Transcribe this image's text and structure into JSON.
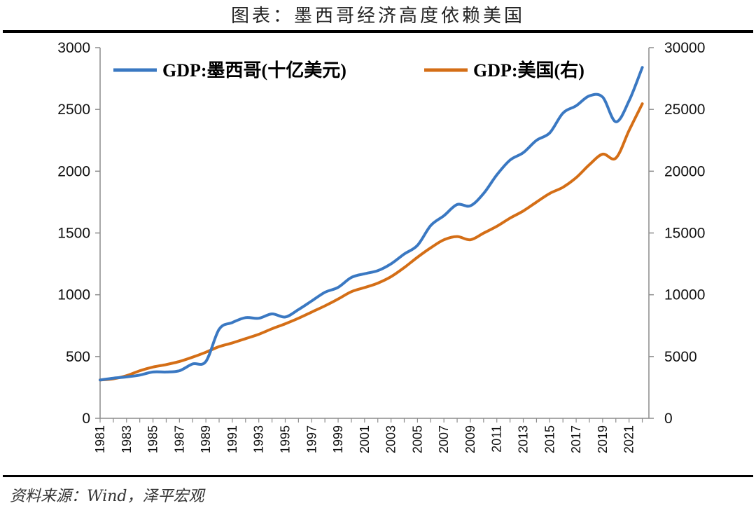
{
  "header": {
    "title": "图表：墨西哥经济高度依赖美国"
  },
  "footer": {
    "source": "资料来源：Wind，泽平宏观"
  },
  "colors": {
    "mexico": "#3a78c2",
    "usa": "#d46e16"
  },
  "chart_data": {
    "type": "line",
    "x": [
      1981,
      1982,
      1983,
      1984,
      1985,
      1986,
      1987,
      1988,
      1989,
      1990,
      1991,
      1992,
      1993,
      1994,
      1995,
      1996,
      1997,
      1998,
      1999,
      2000,
      2001,
      2002,
      2003,
      2004,
      2005,
      2006,
      2007,
      2008,
      2009,
      2010,
      2011,
      2012,
      2013,
      2014,
      2015,
      2016,
      2017,
      2018,
      2019,
      2020,
      2021,
      2022
    ],
    "xtick_labels": [
      "1981",
      "1983",
      "1985",
      "1987",
      "1989",
      "1991",
      "1993",
      "1995",
      "1997",
      "1999",
      "2001",
      "2003",
      "2005",
      "2007",
      "2009",
      "2011",
      "2013",
      "2015",
      "2017",
      "2019",
      "2021"
    ],
    "series": [
      {
        "name": "GDP:墨西哥(十亿美元)",
        "axis": "left",
        "values": [
          310,
          325,
          335,
          350,
          375,
          375,
          385,
          440,
          460,
          720,
          775,
          815,
          810,
          845,
          820,
          880,
          950,
          1020,
          1060,
          1140,
          1170,
          1195,
          1250,
          1330,
          1400,
          1560,
          1640,
          1730,
          1720,
          1820,
          1970,
          2090,
          2150,
          2250,
          2310,
          2470,
          2530,
          2610,
          2600,
          2400,
          2570,
          2840
        ]
      },
      {
        "name": "GDP:美国(右)",
        "axis": "right",
        "values": [
          3100,
          3200,
          3450,
          3850,
          4150,
          4350,
          4600,
          4950,
          5350,
          5800,
          6100,
          6450,
          6800,
          7250,
          7650,
          8100,
          8600,
          9100,
          9650,
          10250,
          10580,
          10940,
          11460,
          12200,
          13040,
          13800,
          14450,
          14710,
          14450,
          14990,
          15540,
          16200,
          16780,
          17500,
          18200,
          18700,
          19480,
          20530,
          21380,
          21060,
          23300,
          25460
        ]
      }
    ],
    "left_axis": {
      "ylim": [
        0,
        3000
      ],
      "ticks": [
        "0",
        "500",
        "1000",
        "1500",
        "2000",
        "2500",
        "3000"
      ]
    },
    "right_axis": {
      "ylim": [
        0,
        30000
      ],
      "ticks": [
        "0",
        "5000",
        "10000",
        "15000",
        "20000",
        "25000",
        "30000"
      ]
    },
    "legend": {
      "placement": "top"
    },
    "grid": false
  }
}
